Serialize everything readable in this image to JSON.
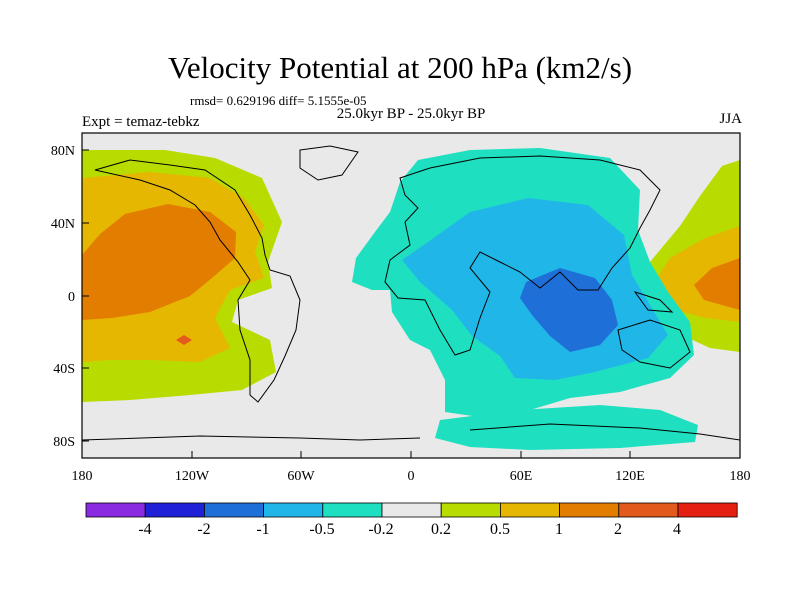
{
  "map": {
    "title": "Velocity Potential at 200 hPa (km2/s)",
    "stats": "rmsd= 0.629196 diff= 5.1555e-05",
    "expt_label": "Expt = temaz-tebkz",
    "period": "25.0kyr BP - 25.0kyr BP",
    "season": "JJA",
    "projection": "cylindrical equidistant",
    "lon_range": [
      -180,
      180
    ],
    "lat_range": [
      -90,
      90
    ],
    "lat_ticks": [
      "80N",
      "40N",
      "0",
      "40S",
      "80S"
    ],
    "lon_ticks": [
      "180",
      "120W",
      "60W",
      "0",
      "60E",
      "120E",
      "180"
    ]
  },
  "colorbar": {
    "colors": [
      "#8a2be2",
      "#2020d8",
      "#1f6fd8",
      "#21b6e8",
      "#1ee0c0",
      "#e9e9e9",
      "#b8dc00",
      "#e5b700",
      "#e27d00",
      "#e25a1c",
      "#e62010"
    ],
    "labels": [
      "-4",
      "-2",
      "-1",
      "-0.5",
      "-0.2",
      "0.2",
      "0.5",
      "1",
      "2",
      "4"
    ]
  }
}
